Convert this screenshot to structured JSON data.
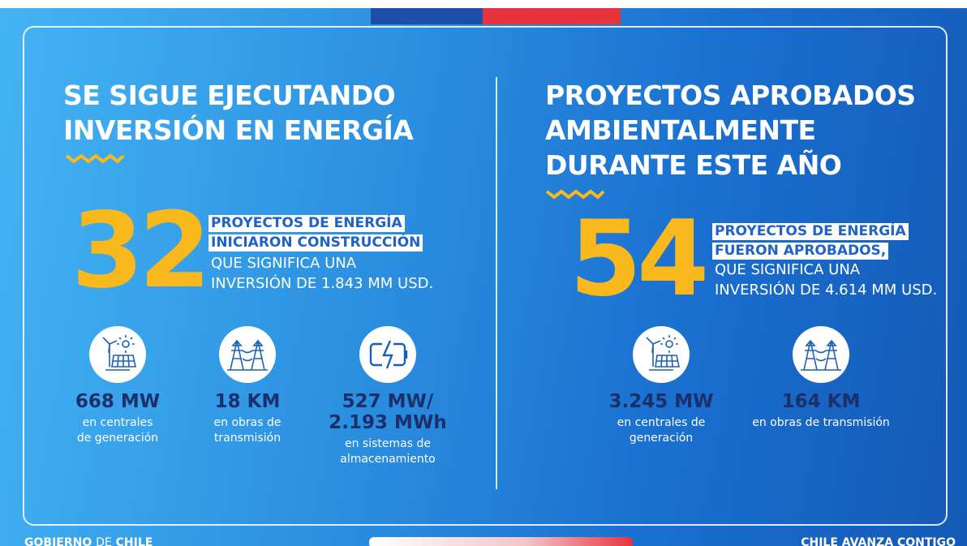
{
  "left": {
    "title": [
      "SE SIGUE EJECUTANDO",
      "INVERSIÓN EN ENERGÍA"
    ],
    "number": "32",
    "highlight": [
      "PROYECTOS DE ENERGÍA",
      "INICIARON CONSTRUCCIÓN"
    ],
    "text": [
      "QUE SIGNIFICA UNA",
      "INVERSIÓN DE 1.843 MM USD."
    ],
    "stats": [
      {
        "value": [
          "668 MW"
        ],
        "label": [
          "en centrales",
          "de generación"
        ]
      },
      {
        "value": [
          "18 KM"
        ],
        "label": [
          "en obras de",
          "transmisión"
        ]
      },
      {
        "value": [
          "527 MW/",
          "2.193 MWh"
        ],
        "label": [
          "en sistemas de",
          "almacenamiento"
        ]
      }
    ]
  },
  "right": {
    "title": [
      "PROYECTOS APROBADOS",
      "AMBIENTALMENTE",
      "DURANTE ESTE AÑO"
    ],
    "number": "54",
    "highlight": [
      "PROYECTOS DE ENERGÍA",
      "FUERON APROBADOS,"
    ],
    "text": [
      "QUE SIGNIFICA UNA",
      "INVERSIÓN DE 4.614 MM USD."
    ],
    "stats": [
      {
        "value": [
          "3.245 MW"
        ],
        "label": [
          "en centrales de",
          "generación"
        ]
      },
      {
        "value": [
          "164 KM"
        ],
        "label": [
          "en obras de transmisión"
        ]
      }
    ]
  },
  "footer": {
    "left": [
      "GOBIERNO",
      "DE",
      "CHILE"
    ],
    "right": "CHILE AVANZA CONTIGO"
  }
}
